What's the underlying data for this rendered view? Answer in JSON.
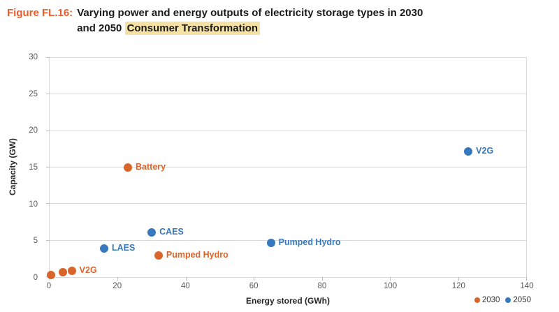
{
  "title": {
    "figure_label": "Figure FL.16:",
    "line1": "Varying power and energy outputs of electricity storage types in 2030",
    "line2_prefix": "and 2050 ",
    "highlight": "Consumer Transformation"
  },
  "colors": {
    "figure_label_orange": "#EB5A28",
    "series_2030_orange": "#D9652B",
    "series_2050_blue": "#3778BE",
    "highlight_bg": "#F5E1A4",
    "gridline_gray": "#D9D9D9",
    "axis_text_gray": "#595959"
  },
  "chart_data": {
    "type": "scatter",
    "xlabel": "Energy stored (GWh)",
    "ylabel": "Capacity (GW)",
    "xlim": [
      0,
      140
    ],
    "ylim": [
      0,
      30
    ],
    "xticks": [
      0,
      20,
      40,
      60,
      80,
      100,
      120,
      140
    ],
    "yticks": [
      0,
      5,
      10,
      15,
      20,
      25,
      30
    ],
    "grid": "horizontal",
    "legend_position": "bottom-right",
    "series": [
      {
        "name": "2030",
        "color": "#D9652B",
        "points": [
          {
            "x": 0.5,
            "y": 0.3,
            "label": ""
          },
          {
            "x": 4,
            "y": 0.7,
            "label": ""
          },
          {
            "x": 6.5,
            "y": 0.9,
            "label": "V2G"
          },
          {
            "x": 23,
            "y": 15,
            "label": "Battery"
          },
          {
            "x": 32,
            "y": 3,
            "label": "Pumped Hydro"
          }
        ]
      },
      {
        "name": "2050",
        "color": "#3778BE",
        "points": [
          {
            "x": 16,
            "y": 3.9,
            "label": "LAES"
          },
          {
            "x": 30,
            "y": 6.1,
            "label": "CAES"
          },
          {
            "x": 65,
            "y": 4.7,
            "label": "Pumped Hydro"
          },
          {
            "x": 123,
            "y": 17.2,
            "label": "V2G"
          }
        ]
      }
    ],
    "legend": [
      {
        "label": "2030",
        "color": "#D9652B"
      },
      {
        "label": "2050",
        "color": "#3778BE"
      }
    ]
  }
}
